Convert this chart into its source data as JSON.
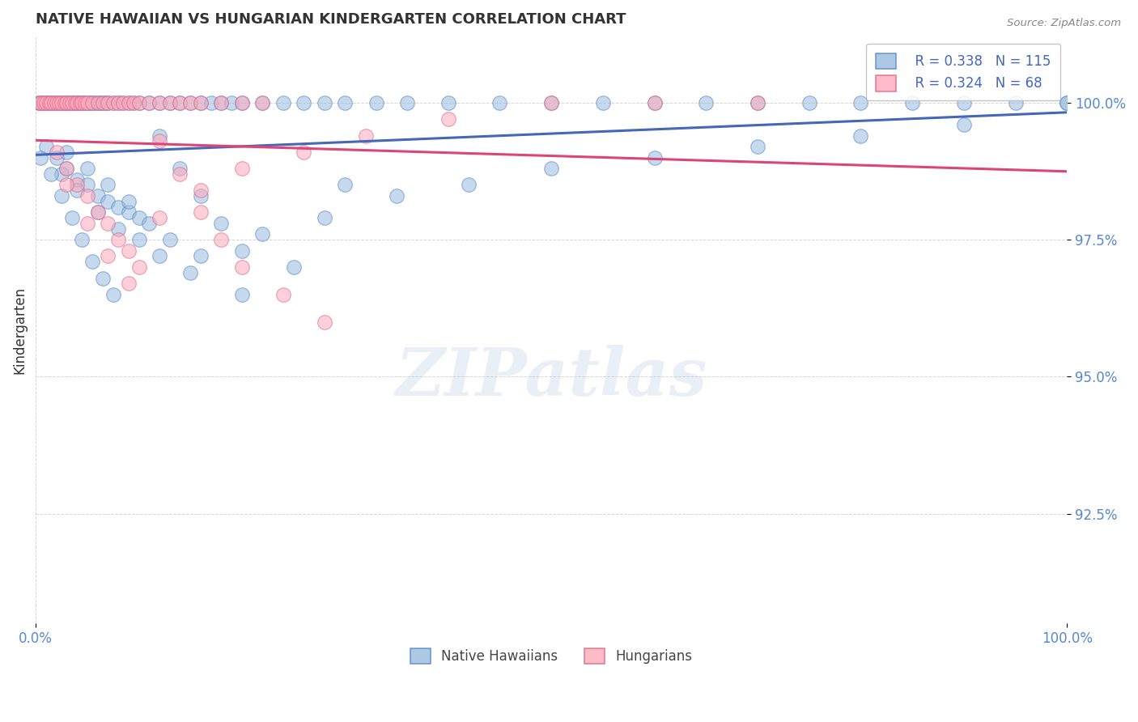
{
  "title": "NATIVE HAWAIIAN VS HUNGARIAN KINDERGARTEN CORRELATION CHART",
  "source": "Source: ZipAtlas.com",
  "ylabel": "Kindergarten",
  "xlim": [
    0.0,
    100.0
  ],
  "ylim": [
    90.5,
    101.2
  ],
  "yticks": [
    92.5,
    95.0,
    97.5,
    100.0
  ],
  "xticks": [
    0.0,
    100.0
  ],
  "xtick_labels": [
    "0.0%",
    "100.0%"
  ],
  "ytick_labels": [
    "92.5%",
    "95.0%",
    "97.5%",
    "100.0%"
  ],
  "blue_color": "#99BBDD",
  "blue_edge": "#5588CC",
  "pink_color": "#FFAABB",
  "pink_edge": "#DD6688",
  "line_blue": "#4466BB",
  "line_pink": "#DD4477",
  "legend_label_blue": "Native Hawaiians",
  "legend_label_pink": "Hungarians",
  "legend_text_color": "#4466BB",
  "watermark_text": "ZIPatlas",
  "title_color": "#333333",
  "source_color": "#888888",
  "tick_color": "#5588CC",
  "grid_color": "#CCCCCC",
  "blue_line_start_y": 99.2,
  "blue_line_end_y": 100.0,
  "pink_line_start_y": 99.5,
  "pink_line_end_y": 100.0,
  "blue_x": [
    0.3,
    0.5,
    0.8,
    1.0,
    1.2,
    1.5,
    1.8,
    2.0,
    2.3,
    2.5,
    2.8,
    3.0,
    3.2,
    3.5,
    3.8,
    4.0,
    4.2,
    4.5,
    4.8,
    5.0,
    5.3,
    5.5,
    5.8,
    6.0,
    6.3,
    6.5,
    6.8,
    7.0,
    7.5,
    8.0,
    8.5,
    9.0,
    9.5,
    10.0,
    11.0,
    12.0,
    13.0,
    14.0,
    15.0,
    16.0,
    17.0,
    18.0,
    19.0,
    20.0,
    22.0,
    24.0,
    26.0,
    28.0,
    30.0,
    33.0,
    36.0,
    40.0,
    45.0,
    50.0,
    55.0,
    60.0,
    65.0,
    70.0,
    75.0,
    80.0,
    85.0,
    90.0,
    95.0,
    100.0,
    1.0,
    2.0,
    3.0,
    4.0,
    5.0,
    6.0,
    7.0,
    8.0,
    9.0,
    10.0,
    12.0,
    14.0,
    16.0,
    18.0,
    20.0,
    25.0,
    30.0,
    2.5,
    4.0,
    6.0,
    8.0,
    10.0,
    12.0,
    15.0,
    20.0,
    3.0,
    5.0,
    7.0,
    9.0,
    11.0,
    13.0,
    16.0,
    22.0,
    28.0,
    35.0,
    42.0,
    50.0,
    60.0,
    70.0,
    80.0,
    90.0,
    100.0,
    0.5,
    1.5,
    2.5,
    3.5,
    4.5,
    5.5,
    6.5,
    7.5
  ],
  "blue_y": [
    100.0,
    100.0,
    100.0,
    100.0,
    100.0,
    100.0,
    100.0,
    100.0,
    100.0,
    100.0,
    100.0,
    100.0,
    100.0,
    100.0,
    100.0,
    100.0,
    100.0,
    100.0,
    100.0,
    100.0,
    100.0,
    100.0,
    100.0,
    100.0,
    100.0,
    100.0,
    100.0,
    100.0,
    100.0,
    100.0,
    100.0,
    100.0,
    100.0,
    100.0,
    100.0,
    100.0,
    100.0,
    100.0,
    100.0,
    100.0,
    100.0,
    100.0,
    100.0,
    100.0,
    100.0,
    100.0,
    100.0,
    100.0,
    100.0,
    100.0,
    100.0,
    100.0,
    100.0,
    100.0,
    100.0,
    100.0,
    100.0,
    100.0,
    100.0,
    100.0,
    100.0,
    100.0,
    100.0,
    100.0,
    99.2,
    99.0,
    98.8,
    98.6,
    98.5,
    98.3,
    98.2,
    98.1,
    98.0,
    97.9,
    99.4,
    98.8,
    98.3,
    97.8,
    97.3,
    97.0,
    98.5,
    98.7,
    98.4,
    98.0,
    97.7,
    97.5,
    97.2,
    96.9,
    96.5,
    99.1,
    98.8,
    98.5,
    98.2,
    97.8,
    97.5,
    97.2,
    97.6,
    97.9,
    98.3,
    98.5,
    98.8,
    99.0,
    99.2,
    99.4,
    99.6,
    100.0,
    99.0,
    98.7,
    98.3,
    97.9,
    97.5,
    97.1,
    96.8,
    96.5
  ],
  "pink_x": [
    0.3,
    0.5,
    0.8,
    1.0,
    1.3,
    1.5,
    1.8,
    2.0,
    2.3,
    2.5,
    2.8,
    3.0,
    3.3,
    3.5,
    3.8,
    4.0,
    4.3,
    4.5,
    4.8,
    5.0,
    5.5,
    6.0,
    6.5,
    7.0,
    7.5,
    8.0,
    8.5,
    9.0,
    9.5,
    10.0,
    11.0,
    12.0,
    13.0,
    14.0,
    15.0,
    16.0,
    18.0,
    20.0,
    22.0,
    2.0,
    3.0,
    4.0,
    5.0,
    6.0,
    7.0,
    8.0,
    9.0,
    10.0,
    12.0,
    14.0,
    16.0,
    18.0,
    20.0,
    24.0,
    28.0,
    3.0,
    5.0,
    7.0,
    9.0,
    12.0,
    16.0,
    20.0,
    26.0,
    32.0,
    40.0,
    50.0,
    60.0,
    70.0
  ],
  "pink_y": [
    100.0,
    100.0,
    100.0,
    100.0,
    100.0,
    100.0,
    100.0,
    100.0,
    100.0,
    100.0,
    100.0,
    100.0,
    100.0,
    100.0,
    100.0,
    100.0,
    100.0,
    100.0,
    100.0,
    100.0,
    100.0,
    100.0,
    100.0,
    100.0,
    100.0,
    100.0,
    100.0,
    100.0,
    100.0,
    100.0,
    100.0,
    100.0,
    100.0,
    100.0,
    100.0,
    100.0,
    100.0,
    100.0,
    100.0,
    99.1,
    98.8,
    98.5,
    98.3,
    98.0,
    97.8,
    97.5,
    97.3,
    97.0,
    99.3,
    98.7,
    98.0,
    97.5,
    97.0,
    96.5,
    96.0,
    98.5,
    97.8,
    97.2,
    96.7,
    97.9,
    98.4,
    98.8,
    99.1,
    99.4,
    99.7,
    100.0,
    100.0,
    100.0
  ]
}
